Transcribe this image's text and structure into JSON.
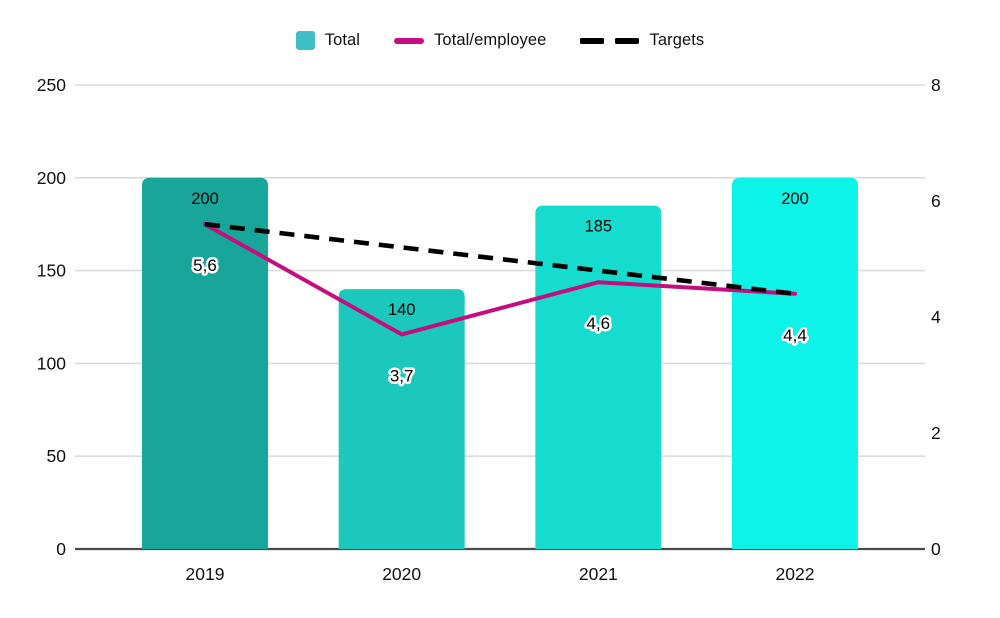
{
  "chart_data": {
    "type": "bar",
    "subtype": "combo-bar-line",
    "title": "",
    "categories": [
      "2019",
      "2020",
      "2021",
      "2022"
    ],
    "series": [
      {
        "name": "Total",
        "type": "bar",
        "axis": "left",
        "values": [
          200,
          140,
          185,
          200
        ],
        "labels": [
          "200",
          "140",
          "185",
          "200"
        ],
        "bar_colors": [
          "#18A69B",
          "#1BC8BB",
          "#16DCCF",
          "#0DF3E8"
        ]
      },
      {
        "name": "Total/employee",
        "type": "line",
        "axis": "right",
        "values": [
          5.6,
          3.7,
          4.6,
          4.4
        ],
        "labels": [
          "5,6",
          "3,7",
          "4,6",
          "4,4"
        ],
        "color": "#C40D7E"
      },
      {
        "name": "Targets",
        "type": "line",
        "style": "dashed",
        "axis": "right",
        "values": [
          5.6,
          5.2,
          4.8,
          4.4
        ],
        "labels": [],
        "color": "#000000"
      }
    ],
    "left_axis": {
      "min": 0,
      "max": 250,
      "ticks": [
        "0",
        "50",
        "100",
        "150",
        "200",
        "250"
      ]
    },
    "right_axis": {
      "min": 0,
      "max": 8,
      "ticks": [
        "0",
        "2",
        "4",
        "6",
        "8"
      ]
    },
    "grid": true,
    "gridline_color": "#DBDBDB",
    "baseline_color": "#4A4A4A",
    "text_color": "#111111",
    "legend": {
      "position": "top",
      "entries": [
        {
          "label": "Total",
          "marker": "square",
          "color": "#3FBEC8"
        },
        {
          "label": "Total/employee",
          "marker": "line",
          "color": "#C40D7E"
        },
        {
          "label": "Targets",
          "marker": "dashes",
          "color": "#000000"
        }
      ]
    }
  }
}
